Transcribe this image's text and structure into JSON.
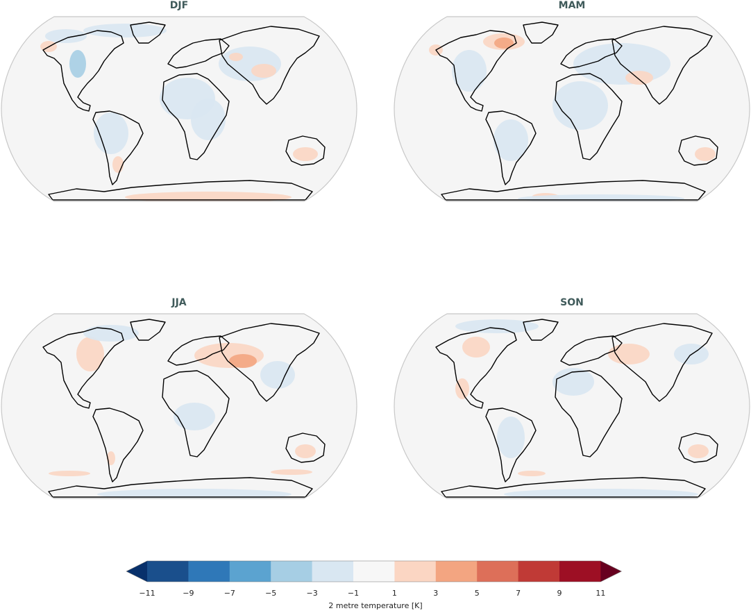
{
  "panels": [
    {
      "title": "DJF"
    },
    {
      "title": "MAM"
    },
    {
      "title": "JJA"
    },
    {
      "title": "SON"
    }
  ],
  "colorbar": {
    "label": "2 metre temperature [K]",
    "ticks": [
      "−11",
      "−9",
      "−7",
      "−5",
      "−3",
      "−1",
      "1",
      "3",
      "5",
      "7",
      "9",
      "11"
    ],
    "colors": [
      "#1a4f8c",
      "#2f78b8",
      "#5ba3d0",
      "#a6cee4",
      "#d9e7f2",
      "#f7f7f7",
      "#fbd6c3",
      "#f3a581",
      "#dd6f59",
      "#c03a36",
      "#9d0f24"
    ],
    "extend_low_color": "#08306b",
    "extend_high_color": "#67001f"
  },
  "map_colors": {
    "background": "#f5f5f5",
    "land_outline": "#000000",
    "frame": "#c8c8c8",
    "cool_anomaly": "#d9e7f2",
    "cooler_anomaly": "#a6cee4",
    "warm_anomaly": "#fbd6c3",
    "warmer_anomaly": "#f3a581"
  }
}
